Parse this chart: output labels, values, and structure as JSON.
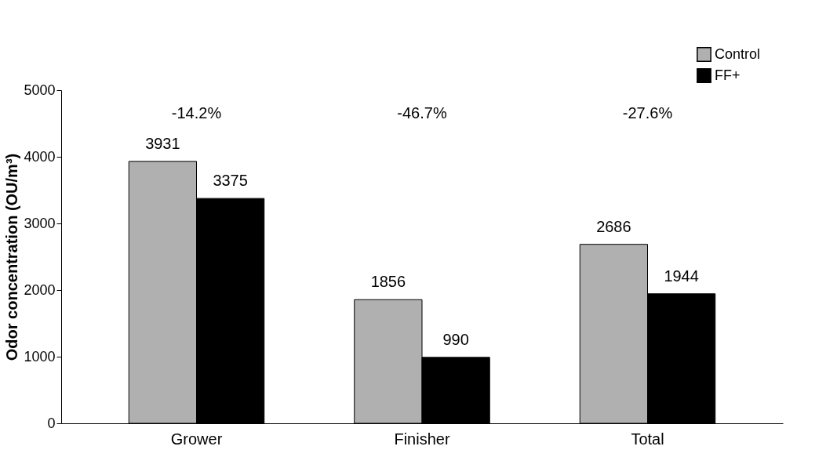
{
  "chart_data": {
    "type": "bar",
    "ylabel": "Odor concentration (OU/m³)",
    "categories": [
      "Grower",
      "Finisher",
      "Total"
    ],
    "series": [
      {
        "name": "Control",
        "color": "#b0b0b0",
        "values": [
          3931,
          1856,
          2686
        ]
      },
      {
        "name": "FF+",
        "color": "#000000",
        "values": [
          3375,
          990,
          1944
        ]
      }
    ],
    "ylim": [
      0,
      5000
    ],
    "yticks": [
      0,
      1000,
      2000,
      3000,
      4000,
      5000
    ],
    "data_labels": true,
    "grid": false,
    "legend": "top right",
    "annotations": [
      "-14.2%",
      "-46.7%",
      "-27.6%"
    ]
  }
}
